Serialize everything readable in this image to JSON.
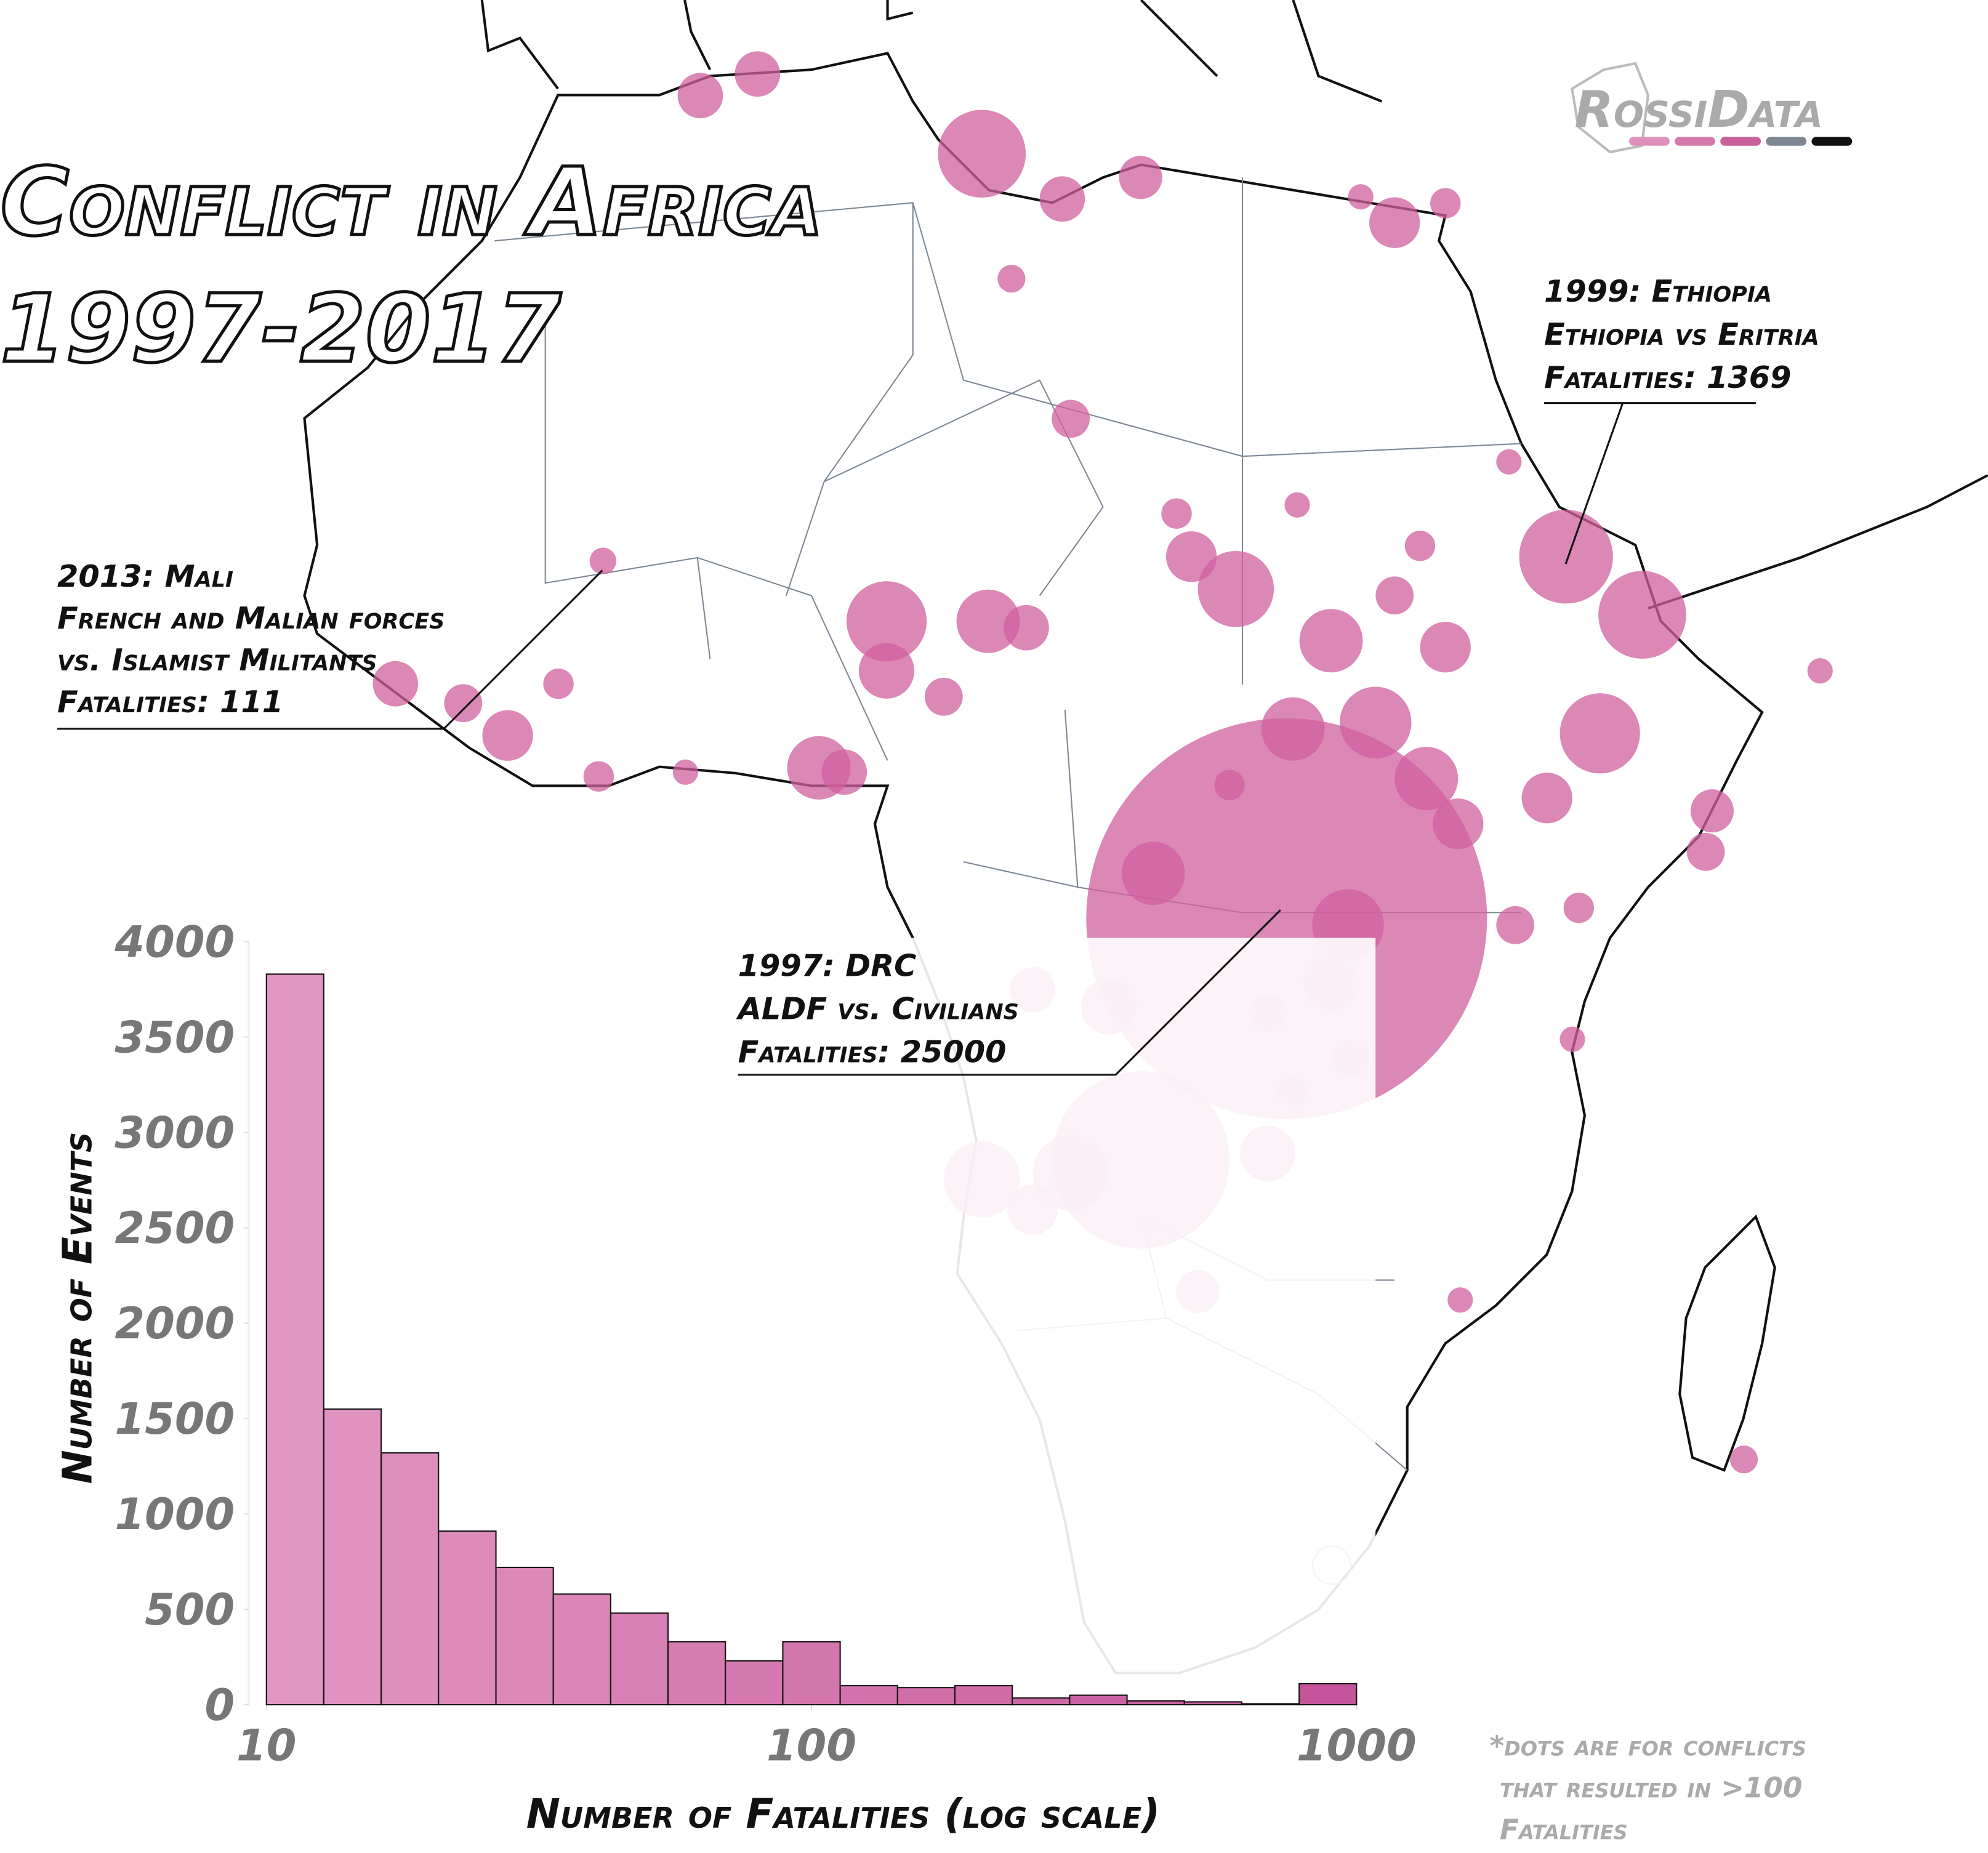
{
  "chart_data": [
    {
      "type": "bubble-map",
      "title": [
        "Conflict in Africa",
        "1997-2017"
      ],
      "color": "#d0609f",
      "x": [
        28.9,
        22.0,
        42.1,
        45.7,
        43.7,
        14.5,
        10.0,
        31.8,
        14.5,
        18.7,
        26.5,
        33.1,
        14.8,
        6.8,
        31.0,
        29.2,
        35.5,
        22.6,
        3.9,
        1.2,
        18.3,
        22.0,
        34.0,
        10.0,
        31.0,
        20.5,
        28.0,
        16.9,
        8.0,
        16.6,
        36.4,
        24.4,
        41.2,
        37.0,
        -7.9,
        16.9,
        24.7,
        49.0,
        -13.2,
        18.7,
        48.7,
        12.7,
        -10.0,
        39.7,
        34.0,
        31.9,
        28.0,
        29.2,
        26.2,
        35.2,
        42.7,
        23.7,
        32.4,
        36.4,
        -5.5,
        -3.6,
        15.9,
        50.5,
        -3.4,
        0.5,
        42.4,
        29.4,
        39.4,
        54.1,
        37.1
      ],
      "y": [
        0.3,
        -10.9,
        17.1,
        14.4,
        8.9,
        35.8,
        14.1,
        0.0,
        -11.8,
        -11.5,
        15.6,
        9.4,
        14.1,
        7.3,
        13.2,
        9.1,
        6.8,
        2.4,
        39.5,
        38.5,
        33.7,
        34.7,
        32.6,
        11.8,
        -2.7,
        -3.8,
        -10.6,
        -13.2,
        7.1,
        13.8,
        12.9,
        17.1,
        5.9,
        4.7,
        8.8,
        -3.0,
        -17.0,
        5.3,
        11.2,
        23.5,
        3.4,
        10.6,
        10.3,
        0.0,
        15.3,
        -6.2,
        -4.1,
        -7.7,
        6.5,
        17.6,
        0.8,
        19.1,
        33.8,
        33.5,
        11.2,
        6.9,
        30.0,
        -24.8,
        16.9,
        7.1,
        -5.3,
        19.5,
        21.5,
        11.8,
        -17.4
      ],
      "sizes": [
        25000,
        4900,
        1369,
        1200,
        1000,
        1200,
        1000,
        800,
        900,
        900,
        900,
        800,
        625,
        625,
        625,
        625,
        625,
        625,
        320,
        320,
        320,
        290,
        400,
        480,
        480,
        480,
        480,
        400,
        320,
        320,
        400,
        400,
        400,
        400,
        400,
        320,
        290,
        290,
        320,
        225,
        225,
        225,
        225,
        225,
        225,
        225,
        225,
        144,
        144,
        144,
        144,
        144,
        100,
        144,
        144,
        144,
        120,
        120,
        111,
        100,
        100,
        100,
        100,
        100,
        100
      ],
      "annotations": [
        [
          "2013: Mali",
          "French and Malian forces",
          "vs. Islamist Militants",
          "Fatalities: 111"
        ],
        [
          "1999: Ethiopia",
          "Ethiopia vs Eritria",
          "Fatalities: 1369"
        ],
        [
          "1997: DRC",
          "ALDF vs. Civilians",
          "Fatalities: 25000"
        ]
      ],
      "logo": "RossiData",
      "logo_colors": [
        "#e08fbd",
        "#d67aad",
        "#c9609b",
        "#7d8794",
        "#111111"
      ],
      "footnote": [
        "*dots are for conflicts",
        "that resulted in >100",
        "Fatalities"
      ]
    },
    {
      "type": "histogram",
      "bins": [
        10,
        12.74,
        16.24,
        20.69,
        26.37,
        33.6,
        42.81,
        54.56,
        69.52,
        88.59,
        112.88,
        143.84,
        183.3,
        233.57,
        297.64,
        379.27,
        483.29,
        615.85,
        784.76,
        1000
      ],
      "counts": [
        3830,
        1550,
        1320,
        910,
        720,
        580,
        480,
        330,
        230,
        330,
        100,
        90,
        100,
        35,
        50,
        20,
        15,
        5,
        110
      ],
      "colors": [
        "#e296c2",
        "#c5559a"
      ],
      "log_x": true,
      "xlim": [
        10,
        1000
      ],
      "xticks": [
        10,
        100,
        1000
      ],
      "ylim": [
        0,
        4000
      ],
      "yticks": [
        0,
        500,
        1000,
        1500,
        2000,
        2500,
        3000,
        3500,
        4000
      ],
      "x_label": "Number of Fatalities (log scale)",
      "y_label": "Number of Events"
    }
  ]
}
